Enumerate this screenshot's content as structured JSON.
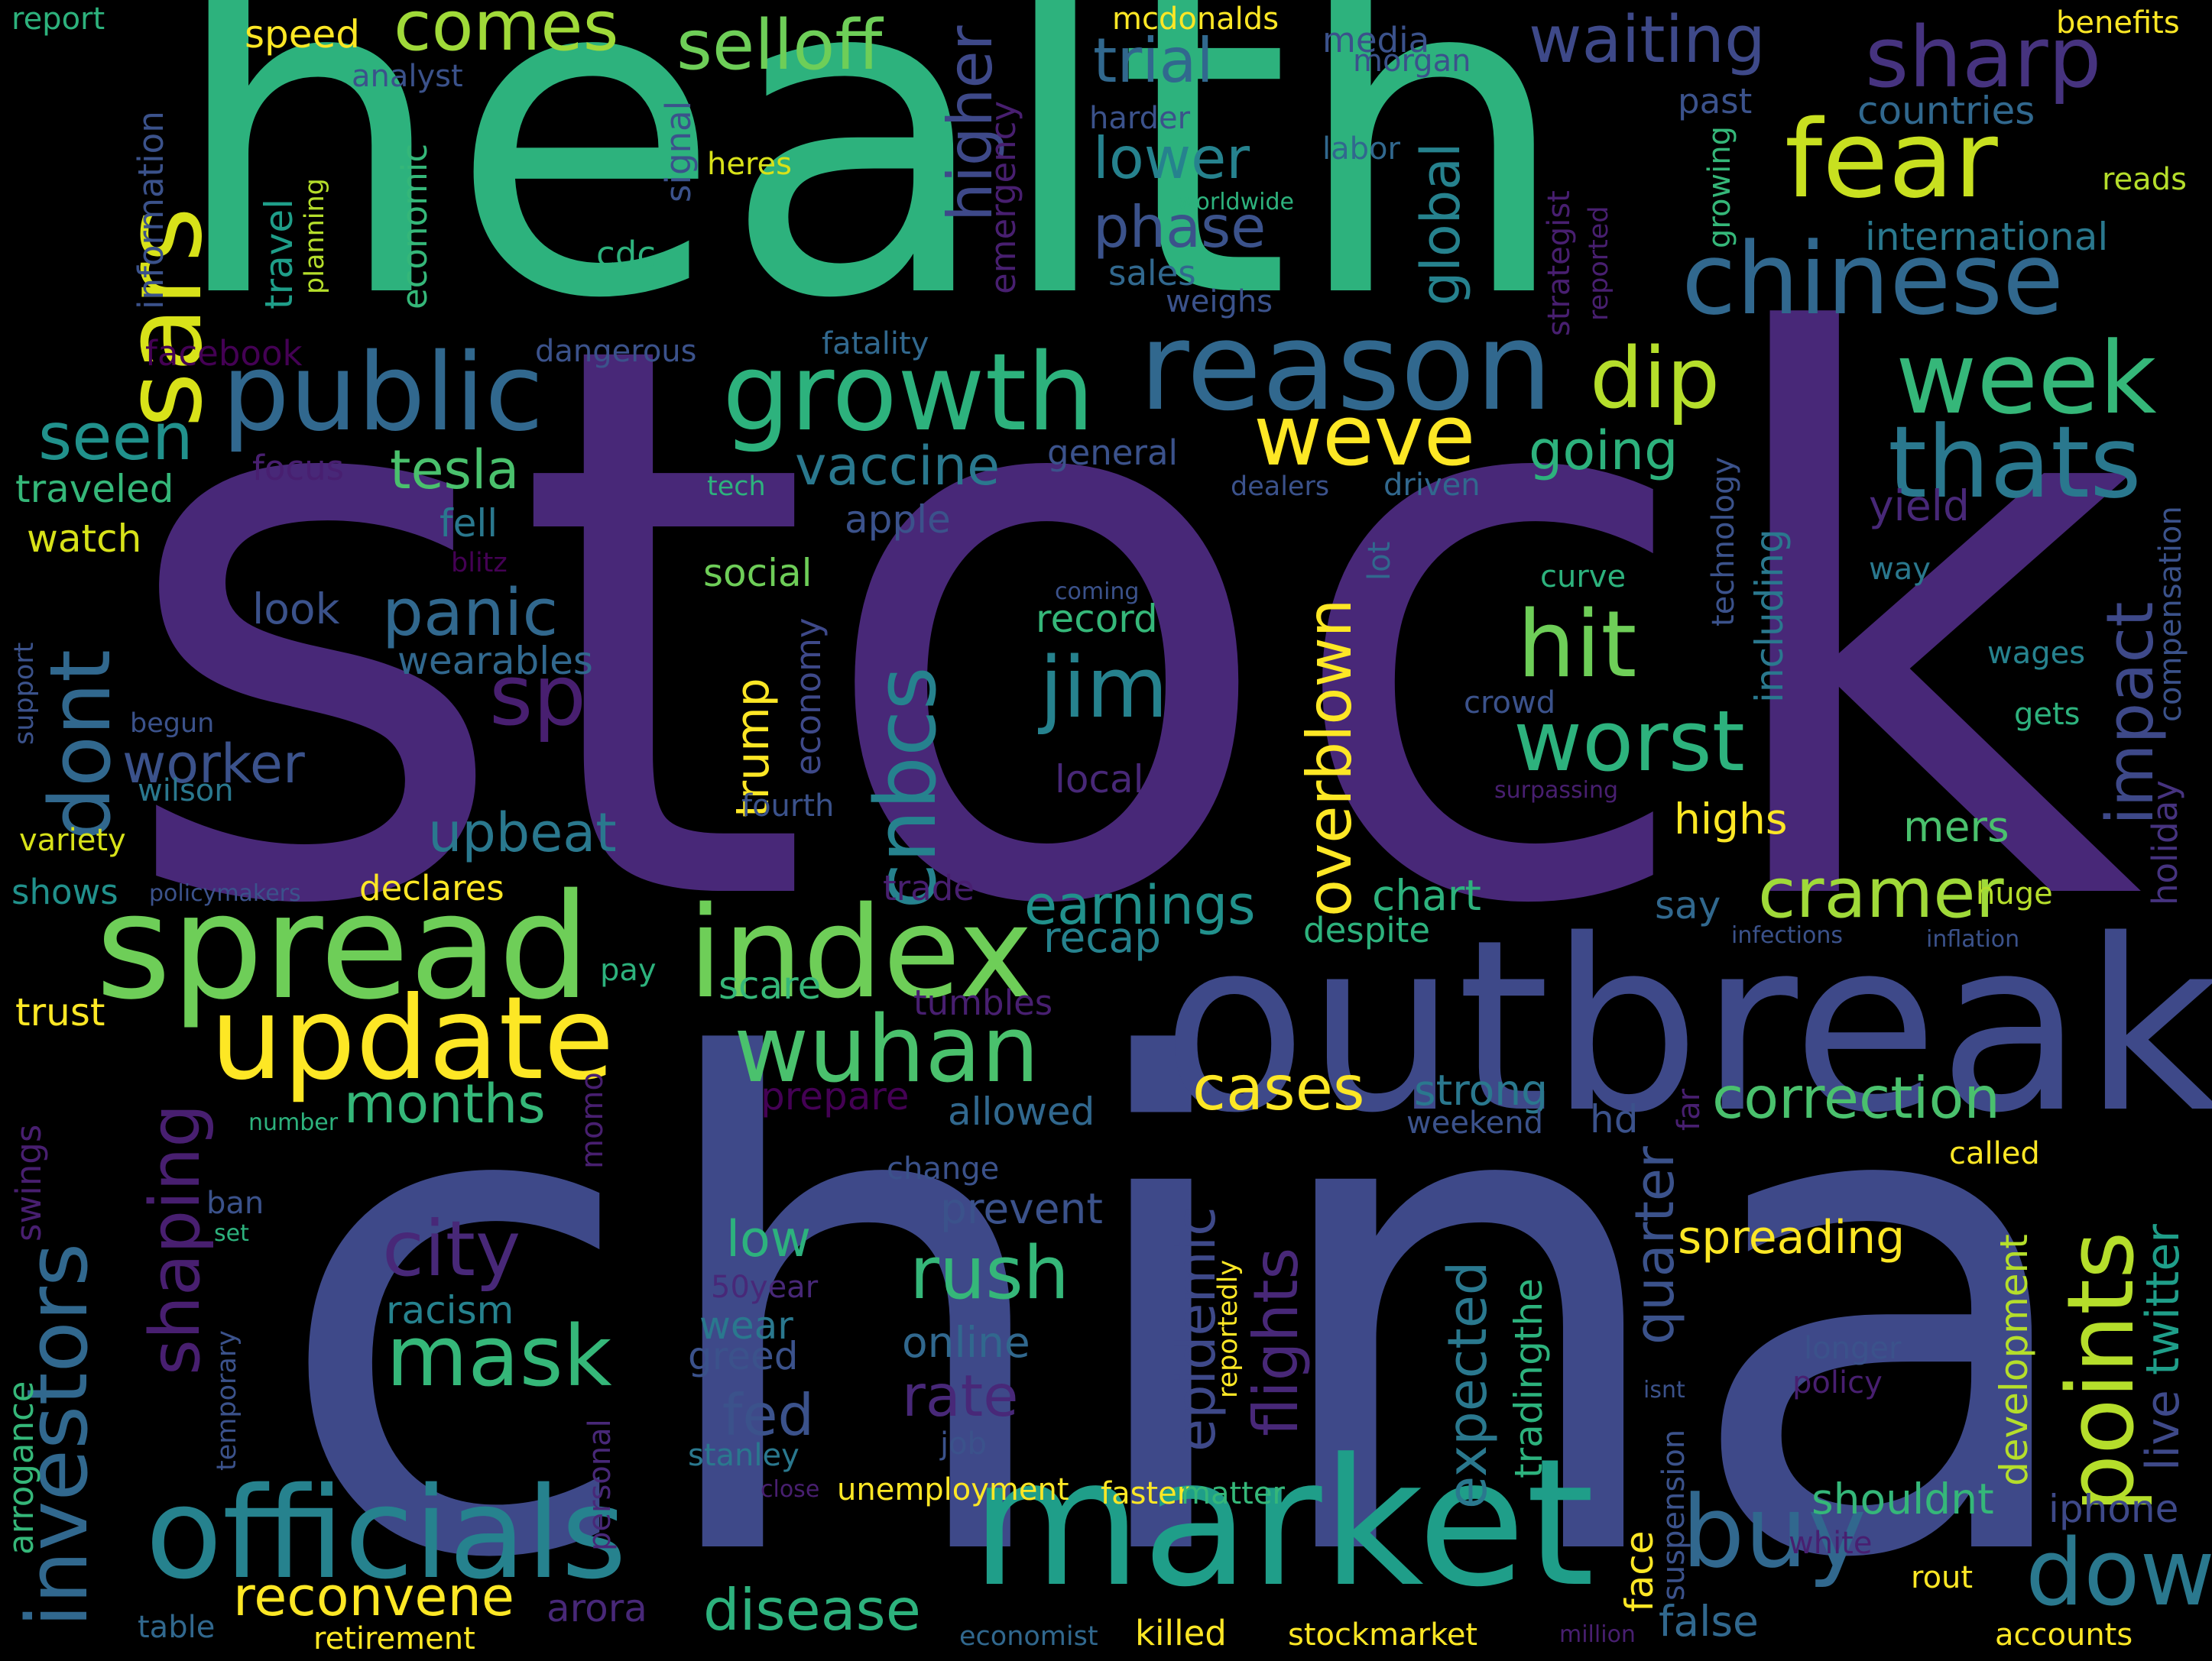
{
  "palette": {
    "background": "#000000",
    "dark_purple": "#440154",
    "purple": "#482878",
    "indigo": "#3e4989",
    "blue": "#31688e",
    "teal": "#26828e",
    "green_teal": "#1f9e89",
    "green": "#35b779",
    "light_green": "#6ece58",
    "lime": "#b5de2b",
    "yellow": "#fde725"
  },
  "words": [
    {
      "text": "stock",
      "color": "#482878"
    },
    {
      "text": "china",
      "color": "#3e4989"
    },
    {
      "text": "health",
      "color": "#2db27d"
    },
    {
      "text": "outbreak",
      "color": "#3e4989"
    },
    {
      "text": "market",
      "color": "#1f9e89"
    },
    {
      "text": "spread",
      "color": "#6ece58"
    },
    {
      "text": "officials",
      "color": "#26828e"
    },
    {
      "text": "index",
      "color": "#6ece58"
    },
    {
      "text": "update",
      "color": "#fde725"
    },
    {
      "text": "reason",
      "color": "#31688e"
    },
    {
      "text": "public",
      "color": "#31688e"
    },
    {
      "text": "growth",
      "color": "#2db27d"
    },
    {
      "text": "chinese",
      "color": "#31688e"
    },
    {
      "text": "fear",
      "color": "#c8e020"
    },
    {
      "text": "sars",
      "color": "#d8e219"
    },
    {
      "text": "week",
      "color": "#35b779"
    },
    {
      "text": "thats",
      "color": "#2a788e"
    },
    {
      "text": "sharp",
      "color": "#46337f"
    },
    {
      "text": "investors",
      "color": "#31688e"
    },
    {
      "text": "wuhan",
      "color": "#4ac16d"
    },
    {
      "text": "buy",
      "color": "#31688e"
    },
    {
      "text": "points",
      "color": "#b5de2b"
    },
    {
      "text": "dow",
      "color": "#2a788e"
    },
    {
      "text": "worst",
      "color": "#2db27d"
    },
    {
      "text": "hit",
      "color": "#6ece58"
    },
    {
      "text": "jim",
      "color": "#26828e"
    },
    {
      "text": "cnbcs",
      "color": "#26828e"
    },
    {
      "text": "overblown",
      "color": "#fde725"
    },
    {
      "text": "dont",
      "color": "#31688e"
    },
    {
      "text": "mask",
      "color": "#35b779"
    },
    {
      "text": "city",
      "color": "#482878"
    },
    {
      "text": "shaping",
      "color": "#481f70"
    },
    {
      "text": "weve",
      "color": "#fde725"
    },
    {
      "text": "dip",
      "color": "#b5de2b"
    },
    {
      "text": "comes",
      "color": "#a0da39"
    },
    {
      "text": "selloff",
      "color": "#6ece58"
    },
    {
      "text": "waiting",
      "color": "#3e4989"
    },
    {
      "text": "trial",
      "color": "#31688e"
    },
    {
      "text": "lower",
      "color": "#26828e"
    },
    {
      "text": "phase",
      "color": "#3b528b"
    },
    {
      "text": "higher",
      "color": "#3e4989"
    },
    {
      "text": "global",
      "color": "#26828e"
    },
    {
      "text": "impact",
      "color": "#3e4989"
    },
    {
      "text": "cramer",
      "color": "#a0da39"
    },
    {
      "text": "correction",
      "color": "#4ac16d"
    },
    {
      "text": "cases",
      "color": "#fde725"
    },
    {
      "text": "rush",
      "color": "#35b779"
    },
    {
      "text": "reconvene",
      "color": "#fde725"
    },
    {
      "text": "disease",
      "color": "#2db27d"
    },
    {
      "text": "panic",
      "color": "#31688e"
    },
    {
      "text": "sp",
      "color": "#481f70"
    },
    {
      "text": "seen",
      "color": "#21918c"
    },
    {
      "text": "tesla",
      "color": "#4ac16d"
    },
    {
      "text": "vaccine",
      "color": "#2a788e"
    },
    {
      "text": "going",
      "color": "#2db27d"
    },
    {
      "text": "earnings",
      "color": "#21918c"
    },
    {
      "text": "epidemic",
      "color": "#3e4989"
    },
    {
      "text": "flights",
      "color": "#482878"
    },
    {
      "text": "expected",
      "color": "#2a788e"
    },
    {
      "text": "quarter",
      "color": "#3b528b"
    },
    {
      "text": "spreading",
      "color": "#fde725"
    },
    {
      "text": "months",
      "color": "#35b779"
    },
    {
      "text": "upbeat",
      "color": "#2a788e"
    },
    {
      "text": "worker",
      "color": "#3b528b"
    },
    {
      "text": "trump",
      "color": "#fde725"
    },
    {
      "text": "fed",
      "color": "#3b528b"
    },
    {
      "text": "rate",
      "color": "#482878"
    },
    {
      "text": "low",
      "color": "#2db27d"
    },
    {
      "text": "development",
      "color": "#b5de2b"
    },
    {
      "text": "twitter",
      "color": "#1f9e89"
    },
    {
      "text": "live",
      "color": "#3e4989"
    },
    {
      "text": "holiday",
      "color": "#46337f"
    },
    {
      "text": "compensation",
      "color": "#3b528b"
    },
    {
      "text": "shouldnt",
      "color": "#35b779"
    },
    {
      "text": "iphone",
      "color": "#3e4989"
    },
    {
      "text": "face",
      "color": "#fde725"
    },
    {
      "text": "false",
      "color": "#31688e"
    },
    {
      "text": "highs",
      "color": "#fde725"
    },
    {
      "text": "mers",
      "color": "#4ac16d"
    },
    {
      "text": "chart",
      "color": "#2db27d"
    },
    {
      "text": "despite",
      "color": "#2db27d"
    },
    {
      "text": "recap",
      "color": "#26828e"
    },
    {
      "text": "say",
      "color": "#31688e"
    },
    {
      "text": "huge",
      "color": "#b5de2b"
    },
    {
      "text": "strong",
      "color": "#2a788e"
    },
    {
      "text": "weekend",
      "color": "#3b528b"
    },
    {
      "text": "hd",
      "color": "#3b528b"
    },
    {
      "text": "far",
      "color": "#481f70"
    },
    {
      "text": "allowed",
      "color": "#31688e"
    },
    {
      "text": "prevent",
      "color": "#3b528b"
    },
    {
      "text": "change",
      "color": "#3b528b"
    },
    {
      "text": "online",
      "color": "#31688e"
    },
    {
      "text": "wear",
      "color": "#2a788e"
    },
    {
      "text": "greed",
      "color": "#3b528b"
    },
    {
      "text": "stanley",
      "color": "#2a788e"
    },
    {
      "text": "job",
      "color": "#3b528b"
    },
    {
      "text": "racism",
      "color": "#26828e"
    },
    {
      "text": "tradingthe",
      "color": "#2db27d"
    },
    {
      "text": "reportedly",
      "color": "#fde725"
    },
    {
      "text": "scare",
      "color": "#35b779"
    },
    {
      "text": "tumbles",
      "color": "#481f70"
    },
    {
      "text": "prepare",
      "color": "#440154"
    },
    {
      "text": "trade",
      "color": "#481f70"
    },
    {
      "text": "pay",
      "color": "#2db27d"
    },
    {
      "text": "trust",
      "color": "#fde725"
    },
    {
      "text": "declares",
      "color": "#fde725"
    },
    {
      "text": "shows",
      "color": "#21918c"
    },
    {
      "text": "variety",
      "color": "#d8e219"
    },
    {
      "text": "wilson",
      "color": "#2a788e"
    },
    {
      "text": "begun",
      "color": "#3b528b"
    },
    {
      "text": "support",
      "color": "#3b528b"
    },
    {
      "text": "look",
      "color": "#3b528b"
    },
    {
      "text": "wearables",
      "color": "#31688e"
    },
    {
      "text": "social",
      "color": "#6ece58"
    },
    {
      "text": "record",
      "color": "#35b779"
    },
    {
      "text": "economy",
      "color": "#3e4989"
    },
    {
      "text": "local",
      "color": "#482878"
    },
    {
      "text": "fourth",
      "color": "#3b528b"
    },
    {
      "text": "apple",
      "color": "#3b528b"
    },
    {
      "text": "fell",
      "color": "#2a788e"
    },
    {
      "text": "watch",
      "color": "#d8e219"
    },
    {
      "text": "traveled",
      "color": "#35b779"
    },
    {
      "text": "focus",
      "color": "#481f70"
    },
    {
      "text": "facebook",
      "color": "#440154"
    },
    {
      "text": "dangerous",
      "color": "#3b528b"
    },
    {
      "text": "fatality",
      "color": "#31688e"
    },
    {
      "text": "general",
      "color": "#3b528b"
    },
    {
      "text": "tech",
      "color": "#2db27d"
    },
    {
      "text": "dealers",
      "color": "#3b528b"
    },
    {
      "text": "driven",
      "color": "#31688e"
    },
    {
      "text": "blitz",
      "color": "#440154"
    },
    {
      "text": "coming",
      "color": "#3b528b"
    },
    {
      "text": "lot",
      "color": "#31688e"
    },
    {
      "text": "curve",
      "color": "#2db27d"
    },
    {
      "text": "crowd",
      "color": "#3b528b"
    },
    {
      "text": "surpassing",
      "color": "#481f70"
    },
    {
      "text": "technology",
      "color": "#3b528b"
    },
    {
      "text": "including",
      "color": "#2a788e"
    },
    {
      "text": "yield",
      "color": "#482878"
    },
    {
      "text": "way",
      "color": "#2a788e"
    },
    {
      "text": "wages",
      "color": "#26828e"
    },
    {
      "text": "gets",
      "color": "#2db27d"
    },
    {
      "text": "report",
      "color": "#2db27d"
    },
    {
      "text": "speed",
      "color": "#fde725"
    },
    {
      "text": "analyst",
      "color": "#3b528b"
    },
    {
      "text": "information",
      "color": "#3b528b"
    },
    {
      "text": "travel",
      "color": "#1f9e89"
    },
    {
      "text": "planning",
      "color": "#b5de2b"
    },
    {
      "text": "economic",
      "color": "#35b779"
    },
    {
      "text": "signal",
      "color": "#3b528b"
    },
    {
      "text": "heres",
      "color": "#d8e219"
    },
    {
      "text": "cdc",
      "color": "#2db27d"
    },
    {
      "text": "emergency",
      "color": "#481f70"
    },
    {
      "text": "mcdonalds",
      "color": "#fde725"
    },
    {
      "text": "media",
      "color": "#3b528b"
    },
    {
      "text": "morgan",
      "color": "#3b528b"
    },
    {
      "text": "harder",
      "color": "#3b528b"
    },
    {
      "text": "labor",
      "color": "#31688e"
    },
    {
      "text": "worldwide",
      "color": "#2db27d"
    },
    {
      "text": "weighs",
      "color": "#3b528b"
    },
    {
      "text": "sales",
      "color": "#31688e"
    },
    {
      "text": "past",
      "color": "#3b528b"
    },
    {
      "text": "countries",
      "color": "#31688e"
    },
    {
      "text": "international",
      "color": "#2a788e"
    },
    {
      "text": "growing",
      "color": "#35b779"
    },
    {
      "text": "strategist",
      "color": "#481f70"
    },
    {
      "text": "reported",
      "color": "#481f70"
    },
    {
      "text": "benefits",
      "color": "#fde725"
    },
    {
      "text": "reads",
      "color": "#b5de2b"
    },
    {
      "text": "infections",
      "color": "#3b528b"
    },
    {
      "text": "inflation",
      "color": "#3b528b"
    },
    {
      "text": "called",
      "color": "#fde725"
    },
    {
      "text": "longer",
      "color": "#3b528b"
    },
    {
      "text": "policy",
      "color": "#481f70"
    },
    {
      "text": "isnt",
      "color": "#3b528b"
    },
    {
      "text": "suspension",
      "color": "#3b528b"
    },
    {
      "text": "white",
      "color": "#481f70"
    },
    {
      "text": "rout",
      "color": "#fde725"
    },
    {
      "text": "accounts",
      "color": "#fde725"
    },
    {
      "text": "million",
      "color": "#481f70"
    },
    {
      "text": "stockmarket",
      "color": "#fde725"
    },
    {
      "text": "killed",
      "color": "#fde725"
    },
    {
      "text": "economist",
      "color": "#31688e"
    },
    {
      "text": "retirement",
      "color": "#fde725"
    },
    {
      "text": "arora",
      "color": "#482878"
    },
    {
      "text": "table",
      "color": "#31688e"
    },
    {
      "text": "unemployment",
      "color": "#fde725"
    },
    {
      "text": "faster",
      "color": "#fde725"
    },
    {
      "text": "matter",
      "color": "#35b779"
    },
    {
      "text": "close",
      "color": "#481f70"
    },
    {
      "text": "personal",
      "color": "#482878"
    },
    {
      "text": "momo",
      "color": "#481f70"
    },
    {
      "text": "50year",
      "color": "#482878"
    },
    {
      "text": "arrogance",
      "color": "#35b779"
    },
    {
      "text": "temporary",
      "color": "#3b528b"
    },
    {
      "text": "ban",
      "color": "#3b528b"
    },
    {
      "text": "set",
      "color": "#2db27d"
    },
    {
      "text": "swings",
      "color": "#481f70"
    },
    {
      "text": "number",
      "color": "#2db27d"
    },
    {
      "text": "policymakers",
      "color": "#3b528b"
    }
  ]
}
